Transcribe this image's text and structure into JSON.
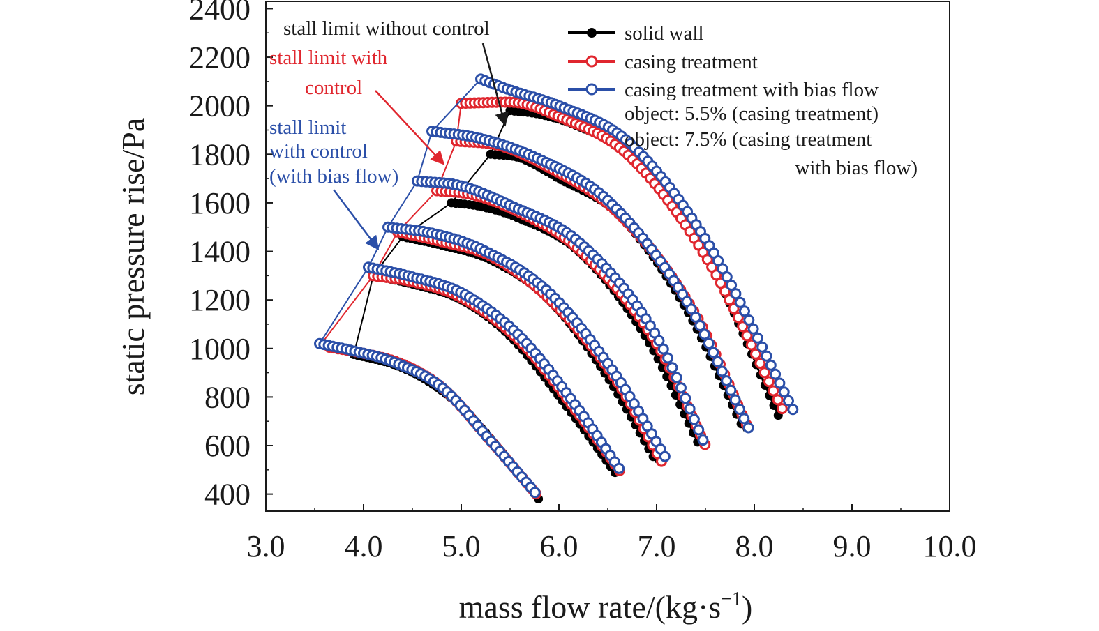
{
  "chart_data": {
    "type": "line",
    "xlabel": "mass flow rate/(kg·s",
    "xlabel_sup": "−1",
    "xlabel_close": ")",
    "ylabel": "static pressure rise/Pa",
    "xlim": [
      3.0,
      10.0
    ],
    "ylim": [
      330,
      2430
    ],
    "x_ticks": [
      3.0,
      4.0,
      5.0,
      6.0,
      7.0,
      8.0,
      9.0,
      10.0
    ],
    "x_tick_labels": [
      "3.0",
      "4.0",
      "5.0",
      "6.0",
      "7.0",
      "8.0",
      "9.0",
      "10.0"
    ],
    "y_ticks": [
      400,
      600,
      800,
      1000,
      1200,
      1400,
      1600,
      1800,
      2000,
      2200,
      2400
    ],
    "y_tick_labels": [
      "400",
      "600",
      "800",
      "1000",
      "1200",
      "1400",
      "1600",
      "1800",
      "2000",
      "2200",
      "2400"
    ],
    "grid": false,
    "legend_position": "top-right",
    "legend": [
      {
        "label": "solid wall",
        "color": "#000000",
        "marker": "filled-circle"
      },
      {
        "label": "casing treatment",
        "color": "#e0262e",
        "marker": "open-circle"
      },
      {
        "label": "casing treatment with bias flow",
        "color": "#2b4fa8",
        "marker": "open-circle"
      }
    ],
    "legend_notes": [
      "object: 5.5% (casing treatment)",
      "object: 7.5% (casing treatment",
      "with bias flow)"
    ],
    "speedlines": [
      {
        "x": [
          3.9,
          4.3,
          4.6,
          5.0,
          5.4,
          5.8
        ],
        "y": [
          975,
          935,
          880,
          760,
          580,
          375
        ]
      },
      {
        "x": [
          4.1,
          4.5,
          5.0,
          5.5,
          6.1,
          6.6
        ],
        "y": [
          1300,
          1265,
          1200,
          1050,
          750,
          475
        ]
      },
      {
        "x": [
          4.4,
          4.8,
          5.3,
          5.9,
          6.5,
          7.0
        ],
        "y": [
          1460,
          1425,
          1365,
          1200,
          880,
          530
        ]
      },
      {
        "x": [
          4.9,
          5.2,
          5.6,
          6.2,
          6.9,
          7.45
        ],
        "y": [
          1600,
          1585,
          1535,
          1400,
          1040,
          590
        ]
      },
      {
        "x": [
          5.3,
          5.6,
          6.0,
          6.6,
          7.3,
          7.9
        ],
        "y": [
          1800,
          1785,
          1700,
          1555,
          1165,
          660
        ]
      },
      {
        "x": [
          5.5,
          5.8,
          6.2,
          6.8,
          7.5,
          8.25
        ],
        "y": [
          1980,
          1965,
          1915,
          1780,
          1390,
          720
        ]
      }
    ],
    "series": [
      {
        "name": "solid wall",
        "color": "#000000",
        "marker": "filled",
        "curves": [
          {
            "x": [
              3.9,
              4.3,
              4.6,
              5.0,
              5.4,
              5.8
            ],
            "y": [
              975,
              935,
              880,
              760,
              580,
              375
            ]
          },
          {
            "x": [
              4.1,
              4.5,
              5.0,
              5.5,
              6.1,
              6.6
            ],
            "y": [
              1300,
              1265,
              1200,
              1050,
              750,
              475
            ]
          },
          {
            "x": [
              4.4,
              4.8,
              5.3,
              5.9,
              6.5,
              7.0
            ],
            "y": [
              1460,
              1425,
              1365,
              1200,
              880,
              530
            ]
          },
          {
            "x": [
              4.9,
              5.2,
              5.6,
              6.2,
              6.9,
              7.45
            ],
            "y": [
              1600,
              1585,
              1535,
              1400,
              1040,
              590
            ]
          },
          {
            "x": [
              5.3,
              5.6,
              6.0,
              6.6,
              7.3,
              7.9
            ],
            "y": [
              1800,
              1785,
              1700,
              1555,
              1165,
              660
            ]
          },
          {
            "x": [
              5.5,
              5.8,
              6.2,
              6.8,
              7.5,
              8.25
            ],
            "y": [
              1980,
              1965,
              1915,
              1780,
              1390,
              720
            ]
          }
        ],
        "stall_line": {
          "x": [
            3.6,
            3.9,
            4.1,
            4.4,
            4.9,
            5.3,
            5.5
          ],
          "y": [
            1020,
            975,
            1300,
            1460,
            1600,
            1800,
            1980
          ]
        }
      },
      {
        "name": "casing treatment",
        "color": "#e0262e",
        "marker": "open",
        "curves": [
          {
            "x": [
              3.65,
              4.0,
              4.4,
              4.8,
              5.3,
              5.8
            ],
            "y": [
              1005,
              980,
              935,
              840,
              620,
              385
            ]
          },
          {
            "x": [
              4.1,
              4.5,
              5.0,
              5.6,
              6.2,
              6.65
            ],
            "y": [
              1300,
              1275,
              1210,
              1030,
              730,
              480
            ]
          },
          {
            "x": [
              4.35,
              4.8,
              5.3,
              5.9,
              6.6,
              7.05
            ],
            "y": [
              1480,
              1440,
              1380,
              1205,
              860,
              535
            ]
          },
          {
            "x": [
              4.75,
              5.1,
              5.6,
              6.2,
              7.0,
              7.5
            ],
            "y": [
              1650,
              1635,
              1560,
              1410,
              1020,
              600
            ]
          },
          {
            "x": [
              4.95,
              5.4,
              5.9,
              6.6,
              7.4,
              7.95
            ],
            "y": [
              1855,
              1835,
              1745,
              1560,
              1140,
              660
            ]
          },
          {
            "x": [
              5.0,
              5.5,
              6.0,
              6.7,
              7.5,
              8.3
            ],
            "y": [
              2010,
              2015,
              1955,
              1800,
              1380,
              740
            ]
          }
        ],
        "stall_line": {
          "x": [
            3.55,
            4.1,
            4.35,
            4.75,
            4.95,
            5.0
          ],
          "y": [
            1010,
            1300,
            1480,
            1650,
            1855,
            2010
          ]
        }
      },
      {
        "name": "casing treatment with bias flow",
        "color": "#2b4fa8",
        "marker": "open",
        "curves": [
          {
            "x": [
              3.55,
              3.9,
              4.3,
              4.8,
              5.3,
              5.78
            ],
            "y": [
              1020,
              990,
              945,
              840,
              620,
              395
            ]
          },
          {
            "x": [
              4.05,
              4.5,
              5.0,
              5.6,
              6.2,
              6.65
            ],
            "y": [
              1335,
              1295,
              1230,
              1050,
              750,
              485
            ]
          },
          {
            "x": [
              4.25,
              4.7,
              5.2,
              5.9,
              6.6,
              7.1
            ],
            "y": [
              1500,
              1475,
              1410,
              1230,
              880,
              545
            ]
          },
          {
            "x": [
              4.55,
              5.0,
              5.5,
              6.2,
              7.0,
              7.5
            ],
            "y": [
              1690,
              1670,
              1590,
              1440,
              1050,
              600
            ]
          },
          {
            "x": [
              4.7,
              5.2,
              5.8,
              6.5,
              7.3,
              7.95
            ],
            "y": [
              1895,
              1865,
              1780,
              1610,
              1200,
              665
            ]
          },
          {
            "x": [
              5.2,
              5.5,
              6.0,
              6.7,
              7.5,
              8.4
            ],
            "y": [
              2110,
              2065,
              2000,
              1855,
              1450,
              745
            ]
          }
        ],
        "stall_line": {
          "x": [
            3.55,
            4.05,
            4.25,
            4.55,
            4.7,
            5.2
          ],
          "y": [
            1020,
            1335,
            1500,
            1690,
            1895,
            2110
          ]
        }
      }
    ],
    "annotations": [
      {
        "id": "no_control",
        "text": [
          "stall limit without control"
        ],
        "color": "#1a1a1a",
        "target": [
          5.45,
          1920
        ]
      },
      {
        "id": "with_control",
        "text": [
          "stall limit with",
          "control"
        ],
        "color": "#e0262e",
        "target": [
          4.82,
          1760
        ]
      },
      {
        "id": "bias_flow",
        "text": [
          "stall limit",
          "with control",
          "(with bias flow)"
        ],
        "color": "#2b4fa8",
        "target": [
          4.15,
          1410
        ]
      }
    ]
  }
}
